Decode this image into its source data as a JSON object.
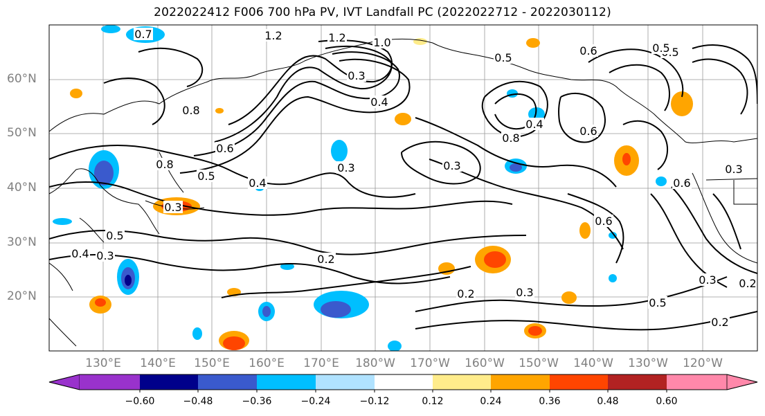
{
  "title": "2022022412 F006 700 hPa PV, IVT Landfall PC (2022022712 - 2022030112)",
  "lat_labels": [
    "60°N",
    "50°N",
    "40°N",
    "30°N",
    "20°N"
  ],
  "lon_labels": [
    "130°E",
    "140°E",
    "150°E",
    "160°E",
    "170°E",
    "180°W",
    "170°W",
    "160°W",
    "150°W",
    "140°W",
    "130°W",
    "120°W"
  ],
  "contour_labels": [
    "0.7",
    "1.2",
    "1.2",
    "1.0",
    "0.5",
    "0.6",
    "0.5",
    "0.8",
    "0.8",
    "0.4",
    "0.4",
    "0.6",
    "0.3",
    "0.8",
    "0.6",
    "0.5",
    "0.4",
    "0.3",
    "0.3",
    "0.3",
    "0.6",
    "0.3",
    "0.5",
    "0.4",
    "0.3",
    "0.2",
    "0.2",
    "0.3",
    "0.2",
    "0.6",
    "0.5",
    "0.3",
    "0.2",
    "0.5"
  ],
  "colorbar": {
    "tick_labels": [
      "−0.60",
      "−0.48",
      "−0.36",
      "−0.24",
      "−0.12",
      "0.12",
      "0.24",
      "0.36",
      "0.48",
      "0.60"
    ],
    "colors": [
      "#9932cc",
      "#00008b",
      "#3a5acd",
      "#00bfff",
      "#b0e2ff",
      "#ffffff",
      "#ffec8b",
      "#ffa500",
      "#ff4500",
      "#b22222",
      "#ff88aa"
    ]
  }
}
